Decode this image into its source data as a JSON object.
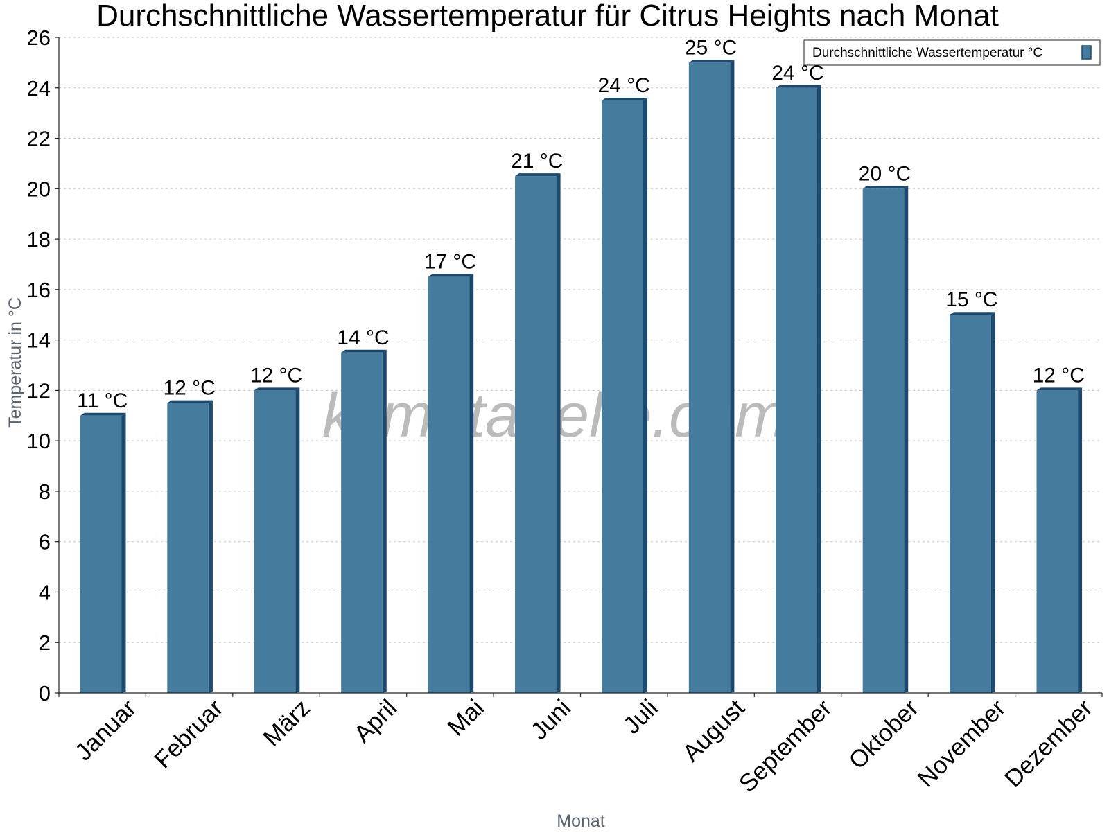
{
  "chart_data": {
    "type": "bar",
    "title": "Durchschnittliche Wassertemperatur für Citrus Heights nach Monat",
    "xlabel": "Monat",
    "ylabel": "Temperatur in °C",
    "ylim": [
      0,
      26
    ],
    "yticks": [
      "0",
      "2",
      "4",
      "6",
      "8",
      "10",
      "12",
      "14",
      "16",
      "18",
      "20",
      "22",
      "24",
      "26"
    ],
    "grid": true,
    "legend_position": "top-right",
    "categories": [
      "Januar",
      "Februar",
      "März",
      "April",
      "Mai",
      "Juni",
      "Juli",
      "August",
      "September",
      "Oktober",
      "November",
      "Dezember"
    ],
    "series": [
      {
        "name": "Durchschnittliche Wassertemperatur °C",
        "color": "#457b9d",
        "values": [
          11.0,
          11.5,
          12.0,
          13.5,
          16.5,
          20.5,
          23.5,
          25.0,
          24.0,
          20.0,
          15.0,
          12.0
        ],
        "labels": [
          "11 °C",
          "12 °C",
          "12 °C",
          "14 °C",
          "17 °C",
          "21 °C",
          "24 °C",
          "25 °C",
          "24 °C",
          "20 °C",
          "15 °C",
          "12 °C"
        ]
      }
    ],
    "watermark": "klimatabelle.com"
  }
}
